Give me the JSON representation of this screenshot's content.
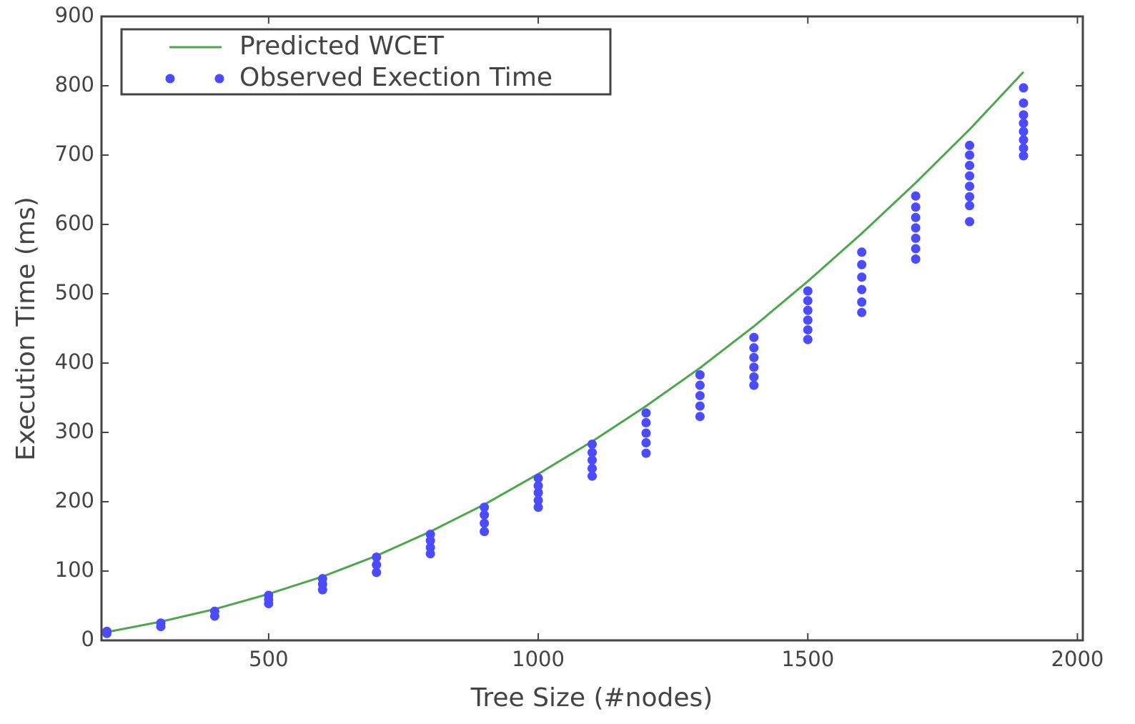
{
  "chart_data": {
    "type": "line",
    "x_label": "Tree Size (#nodes)",
    "y_label": "Execution Time (ms)",
    "xlim": [
      190,
      2010
    ],
    "ylim": [
      0,
      900
    ],
    "xticks": [
      500,
      1000,
      1500,
      2000
    ],
    "yticks": [
      0,
      100,
      200,
      300,
      400,
      500,
      600,
      700,
      800,
      900
    ],
    "legend": "upper-left",
    "series": [
      {
        "name": "Predicted WCET",
        "type": "line",
        "color": "#4ca64c",
        "x": [
          200,
          300,
          400,
          500,
          600,
          700,
          800,
          900,
          1000,
          1100,
          1200,
          1300,
          1400,
          1500,
          1600,
          1700,
          1800,
          1900
        ],
        "values": [
          12,
          27,
          45,
          67,
          92,
          122,
          157,
          196,
          240,
          287,
          338,
          393,
          453,
          518,
          587,
          660,
          737,
          820
        ]
      },
      {
        "name": "Observed Exection Time",
        "type": "scatter",
        "color": "#4b4bff",
        "x": [
          200,
          200,
          300,
          300,
          400,
          400,
          500,
          500,
          500,
          600,
          600,
          600,
          700,
          700,
          700,
          800,
          800,
          800,
          800,
          900,
          900,
          900,
          900,
          1000,
          1000,
          1000,
          1000,
          1000,
          1100,
          1100,
          1100,
          1100,
          1100,
          1200,
          1200,
          1200,
          1200,
          1200,
          1300,
          1300,
          1300,
          1300,
          1300,
          1400,
          1400,
          1400,
          1400,
          1400,
          1400,
          1500,
          1500,
          1500,
          1500,
          1500,
          1500,
          1600,
          1600,
          1600,
          1600,
          1600,
          1600,
          1700,
          1700,
          1700,
          1700,
          1700,
          1700,
          1700,
          1800,
          1800,
          1800,
          1800,
          1800,
          1800,
          1800,
          1800,
          1900,
          1900,
          1900,
          1900,
          1900,
          1900,
          1900,
          1900
        ],
        "values": [
          10,
          13,
          20,
          25,
          35,
          42,
          53,
          59,
          65,
          73,
          81,
          89,
          98,
          109,
          120,
          125,
          134,
          144,
          153,
          157,
          169,
          181,
          192,
          192,
          202,
          213,
          223,
          234,
          237,
          248,
          260,
          271,
          283,
          270,
          285,
          299,
          314,
          328,
          323,
          338,
          353,
          368,
          383,
          368,
          380,
          394,
          408,
          422,
          437,
          434,
          448,
          462,
          476,
          490,
          504,
          473,
          488,
          506,
          524,
          542,
          560,
          550,
          565,
          580,
          595,
          610,
          625,
          641,
          604,
          627,
          640,
          655,
          670,
          685,
          700,
          714,
          699,
          710,
          722,
          734,
          746,
          758,
          775,
          797
        ]
      }
    ]
  }
}
